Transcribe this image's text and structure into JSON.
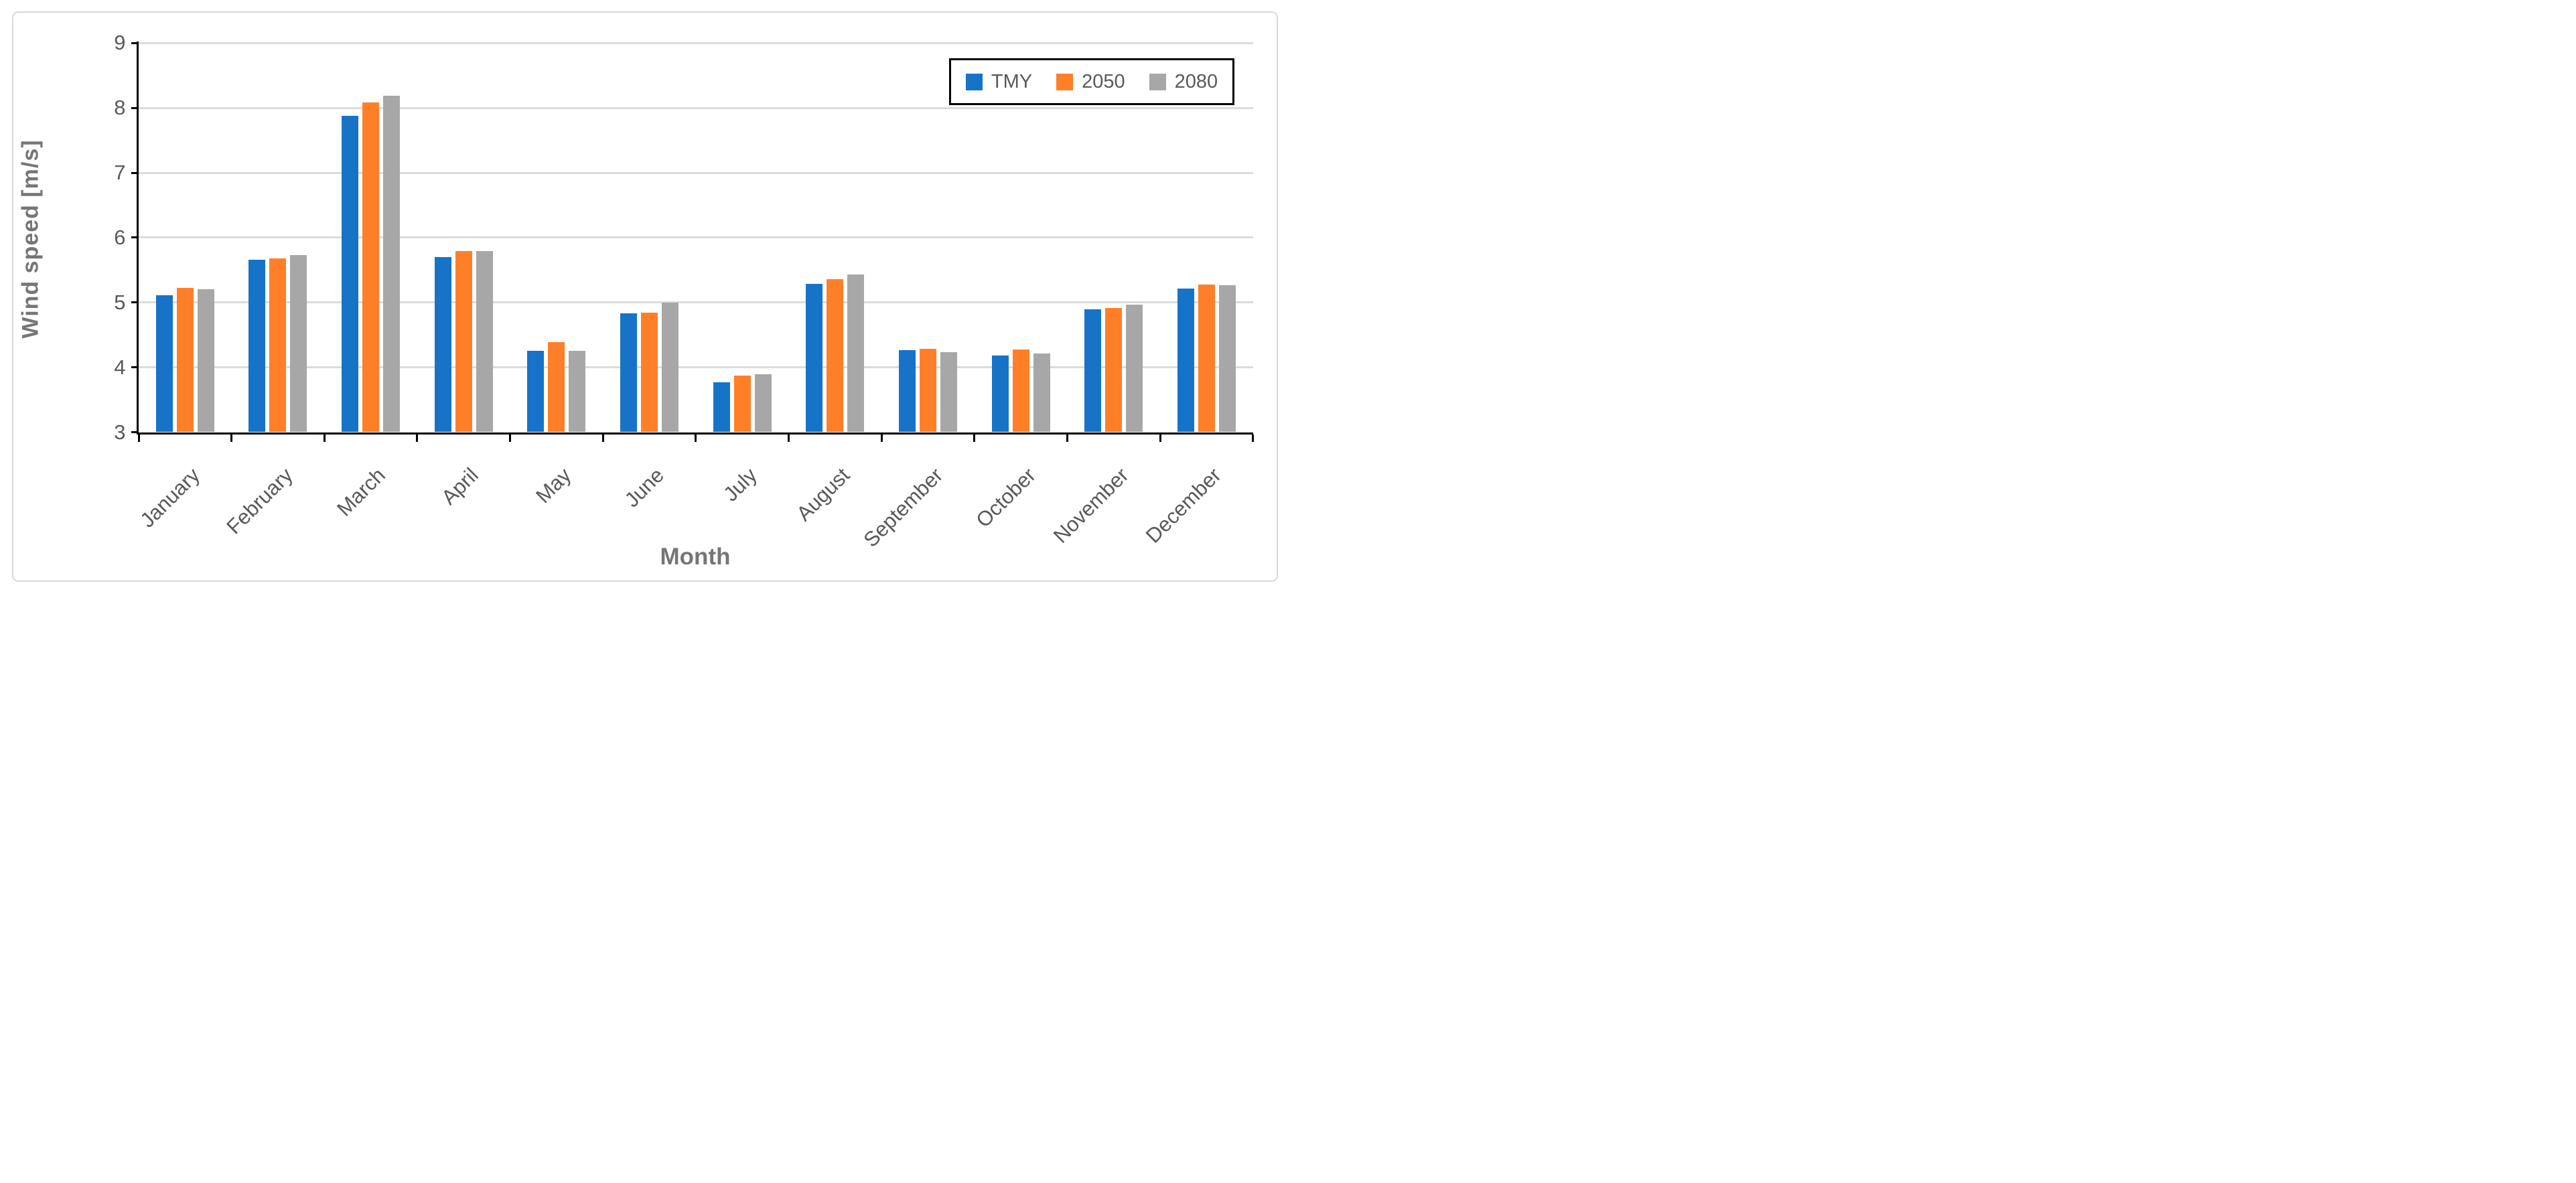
{
  "chart_data": {
    "type": "bar",
    "title": "",
    "xlabel": "Month",
    "ylabel": "Wind speed [m/s]",
    "categories": [
      "January",
      "February",
      "March",
      "April",
      "May",
      "June",
      "July",
      "August",
      "September",
      "October",
      "November",
      "December"
    ],
    "series": [
      {
        "name": "TMY",
        "color": "#1773c7",
        "values": [
          5.11,
          5.66,
          7.88,
          5.7,
          4.25,
          4.83,
          3.77,
          5.29,
          4.26,
          4.18,
          4.89,
          5.21
        ]
      },
      {
        "name": "2050",
        "color": "#ff7f28",
        "values": [
          5.22,
          5.68,
          8.08,
          5.79,
          4.39,
          4.84,
          3.87,
          5.36,
          4.29,
          4.27,
          4.92,
          5.28
        ]
      },
      {
        "name": "2080",
        "color": "#a7a7a7",
        "values": [
          5.2,
          5.73,
          8.19,
          5.79,
          4.25,
          5.0,
          3.89,
          5.43,
          4.23,
          4.21,
          4.97,
          5.27
        ]
      }
    ],
    "ylim": [
      3,
      9
    ],
    "y_ticks": [
      3,
      4,
      5,
      6,
      7,
      8,
      9
    ],
    "grid": true,
    "legend_position": "top-right",
    "colors": {
      "gridline": "#dbdbdb",
      "axis": "#000000",
      "tick_label": "#595959",
      "axis_title": "#767676",
      "legend_border": "#000000",
      "figure_border": "#d9d9d9"
    }
  }
}
